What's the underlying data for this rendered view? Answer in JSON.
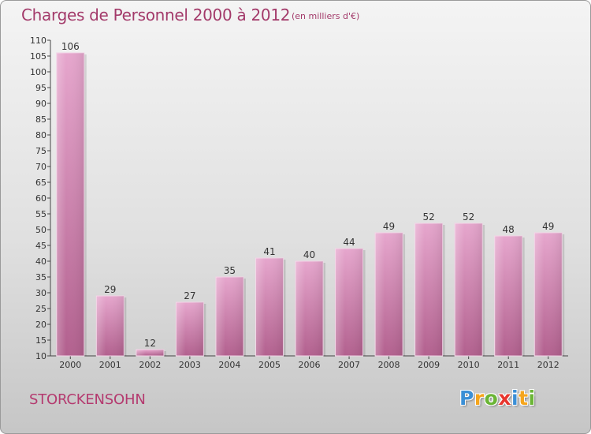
{
  "header": {
    "title": "Charges de Personnel 2000 à 2012",
    "unit_note": "(en milliers d'€)"
  },
  "footer": {
    "commune": "STORCKENSOHN",
    "brand_letters": [
      {
        "char": "P",
        "color": "#3b8fd6"
      },
      {
        "char": "r",
        "color": "#f5a51c"
      },
      {
        "char": "o",
        "color": "#6bb536"
      },
      {
        "char": "x",
        "color": "#e8362e"
      },
      {
        "char": "i",
        "color": "#3b8fd6"
      },
      {
        "char": "t",
        "color": "#f5a51c"
      },
      {
        "char": "i",
        "color": "#6bb536"
      }
    ]
  },
  "colors": {
    "bar_top": "#e6a6cd",
    "bar_bottom": "#b2608e",
    "text_accent": "#a33a6a"
  },
  "chart_data": {
    "type": "bar",
    "title": "Charges de Personnel 2000 à 2012",
    "subtitle": "(en milliers d'€)",
    "xlabel": "",
    "ylabel": "",
    "categories": [
      "2000",
      "2001",
      "2002",
      "2003",
      "2004",
      "2005",
      "2006",
      "2007",
      "2008",
      "2009",
      "2010",
      "2011",
      "2012"
    ],
    "values": [
      106,
      29,
      12,
      27,
      35,
      41,
      40,
      44,
      49,
      52,
      52,
      48,
      49
    ],
    "ylim": [
      10,
      110
    ],
    "yticks": [
      10,
      15,
      20,
      25,
      30,
      35,
      40,
      45,
      50,
      55,
      60,
      65,
      70,
      75,
      80,
      85,
      90,
      95,
      100,
      105,
      110
    ],
    "grid": false,
    "legend": "none"
  }
}
